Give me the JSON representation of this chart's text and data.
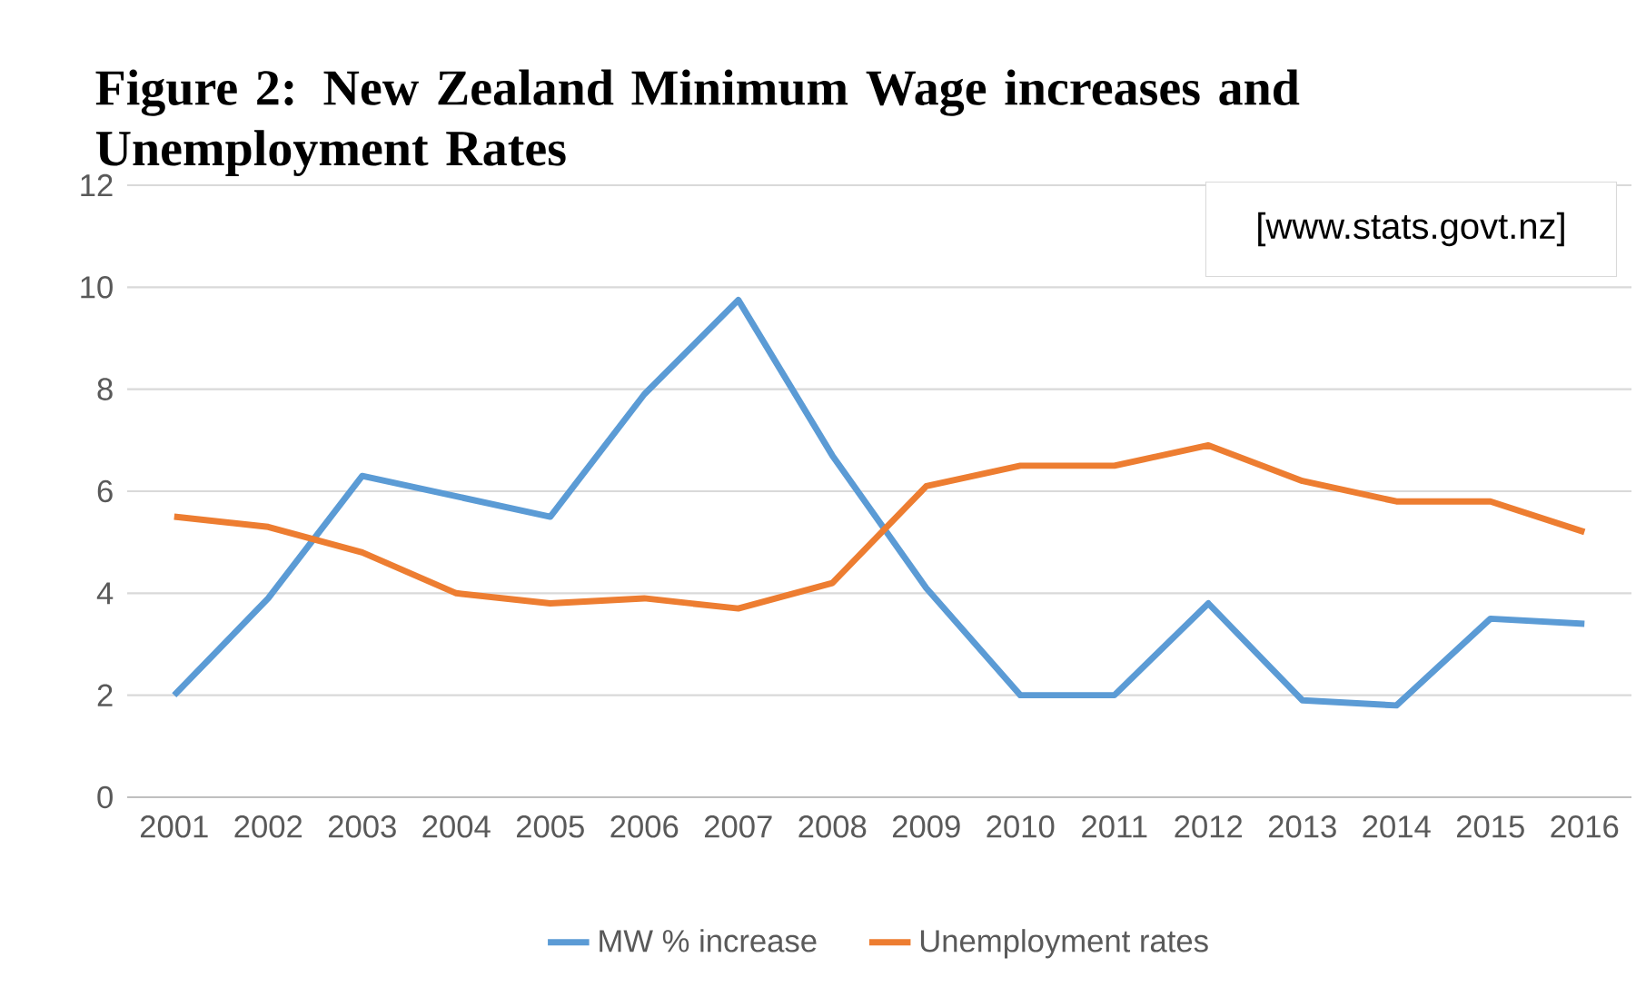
{
  "chart_data": {
    "type": "line",
    "title": "Figure 2: New Zealand Minimum Wage increases and Unemployment Rates",
    "categories": [
      "2001",
      "2002",
      "2003",
      "2004",
      "2005",
      "2006",
      "2007",
      "2008",
      "2009",
      "2010",
      "2011",
      "2012",
      "2013",
      "2014",
      "2015",
      "2016"
    ],
    "series": [
      {
        "name": "MW % increase",
        "color": "#5b9bd5",
        "values": [
          2.0,
          3.9,
          6.3,
          5.9,
          5.5,
          7.9,
          9.75,
          6.7,
          4.1,
          2.0,
          2.0,
          3.8,
          1.9,
          1.8,
          3.5,
          3.4
        ]
      },
      {
        "name": "Unemployment rates",
        "color": "#ed7d31",
        "values": [
          5.5,
          5.3,
          4.8,
          4.0,
          3.8,
          3.9,
          3.7,
          4.2,
          6.1,
          6.5,
          6.5,
          6.9,
          6.2,
          5.8,
          5.8,
          5.2
        ]
      }
    ],
    "ylim": [
      0,
      12
    ],
    "yticks": [
      0,
      2,
      4,
      6,
      8,
      10,
      12
    ],
    "grid": "y",
    "legend": "bottom",
    "marker": "none",
    "line_style": "solid",
    "annotations": [
      "[www.stats.govt.nz]"
    ]
  }
}
